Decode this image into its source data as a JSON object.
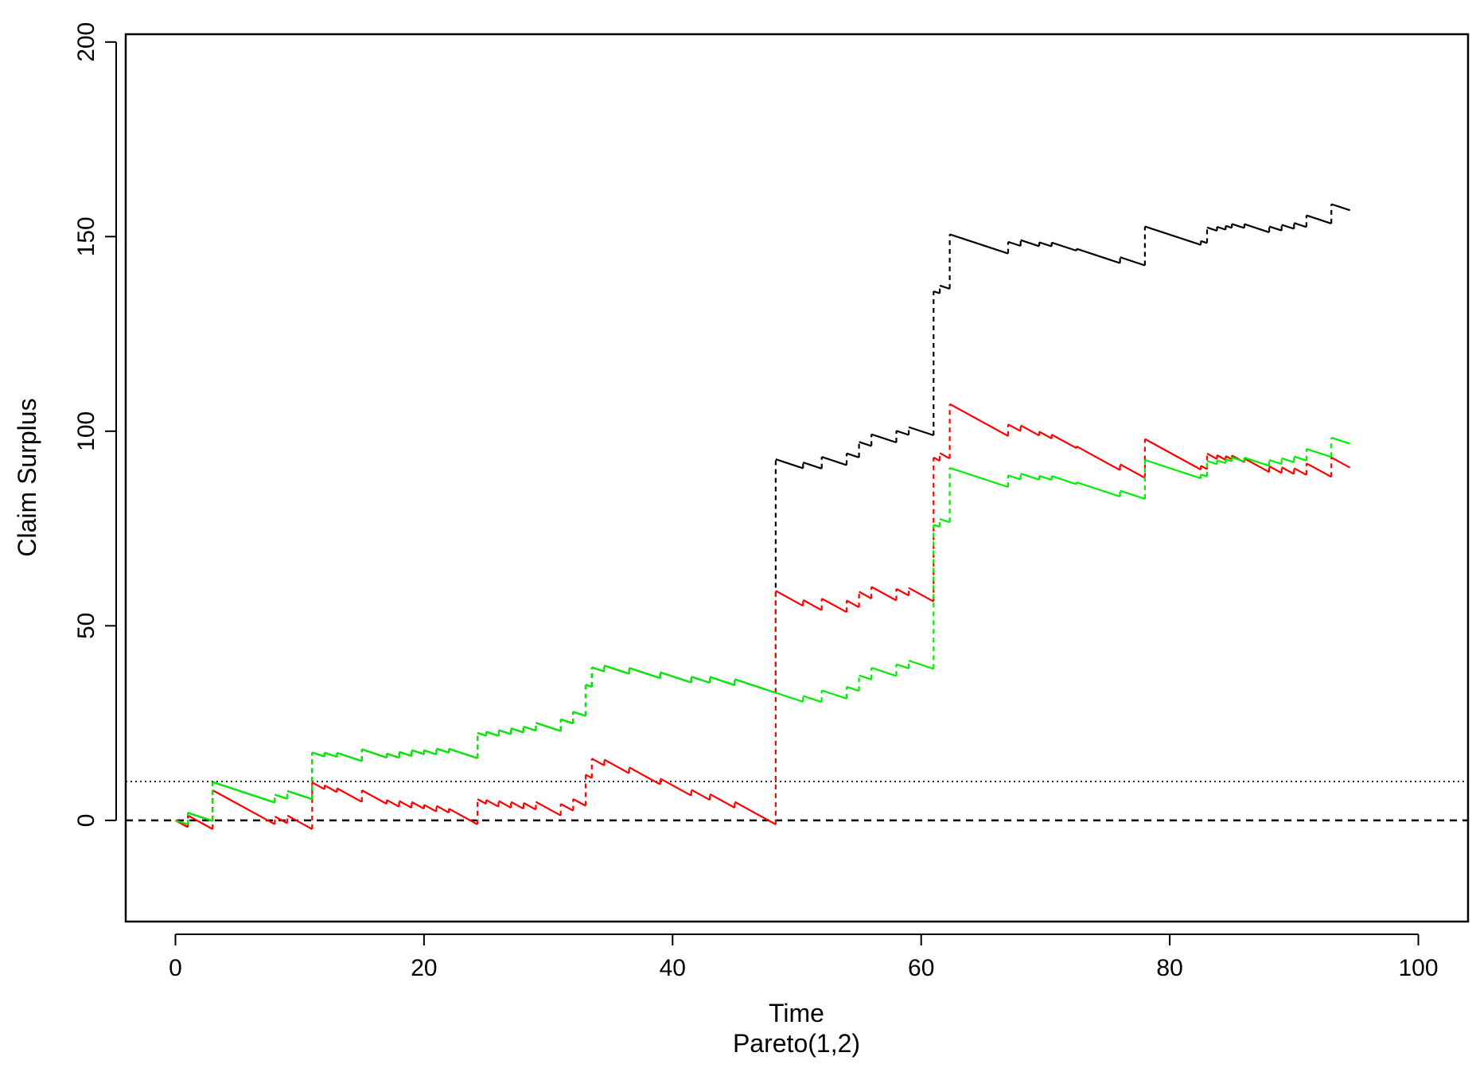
{
  "chart_data": {
    "type": "line",
    "title": "",
    "xlabel": "Time",
    "subtitle": "Pareto(1,2)",
    "ylabel": "Claim Surplus",
    "xlim": [
      -4,
      104
    ],
    "ylim": [
      -26,
      202
    ],
    "xticks": [
      "0",
      "20",
      "40",
      "60",
      "80",
      "100"
    ],
    "yticks": [
      "0",
      "50",
      "100",
      "150",
      "200"
    ],
    "xtick_values": [
      0,
      20,
      40,
      60,
      80,
      100
    ],
    "ytick_values": [
      0,
      50,
      100,
      150,
      200
    ],
    "reference_lines": [
      {
        "y": 0,
        "style": "dashed",
        "color": "#000000"
      },
      {
        "y": 10,
        "style": "dotted",
        "color": "#000000"
      }
    ],
    "claim_times": [
      1,
      3,
      8,
      9,
      11,
      12,
      13,
      15,
      17,
      18,
      19,
      20,
      21,
      22,
      24.3,
      25,
      26,
      27,
      28,
      29,
      31,
      32,
      33,
      33.5,
      34.5,
      36.5,
      39,
      41.5,
      43,
      45,
      48.3,
      50.5,
      52,
      54,
      55,
      56,
      58,
      59,
      61,
      61.5,
      62.3,
      67,
      68,
      69.5,
      70.5,
      72.5,
      76,
      78,
      82.5,
      83,
      83.8,
      84.5,
      85,
      86,
      88,
      89,
      90,
      91,
      93
    ],
    "claim_sizes": [
      3,
      10,
      2,
      2,
      12,
      1,
      1,
      3,
      1,
      1.5,
      1.5,
      1,
      1.5,
      1,
      6.5,
      1,
      1.5,
      1.5,
      1.5,
      2,
      3,
      3,
      8,
      5,
      1.5,
      1.5,
      1.5,
      1.5,
      1.5,
      1.5,
      60,
      1.5,
      3,
      3,
      4,
      3,
      3,
      2,
      37,
      2,
      14,
      3,
      1.5,
      1,
      1,
      0.5,
      1.5,
      10,
      1,
      4,
      1,
      1,
      1,
      1,
      1.5,
      1.5,
      1.5,
      3,
      5
    ],
    "series": [
      {
        "color": "#000000",
        "drift": -1.05,
        "offset": 0
      },
      {
        "color": "#ff0000",
        "drift": -1.75,
        "offset": 0
      },
      {
        "color": "#00ee00",
        "drift": -1.05,
        "offset": -60,
        "offset_from": 48.3
      }
    ],
    "end_time": 94.5
  }
}
